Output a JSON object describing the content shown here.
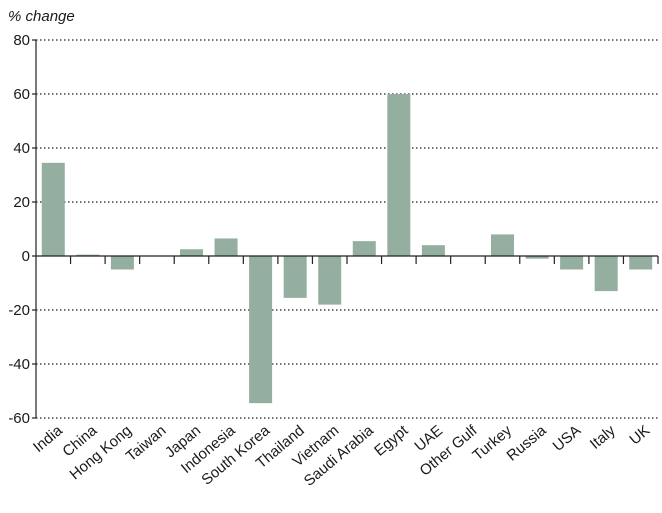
{
  "chart_data": {
    "type": "bar",
    "ylabel": "% change",
    "ylim": [
      -60,
      80
    ],
    "yticks": [
      80,
      60,
      40,
      20,
      0,
      -20,
      -40,
      -60
    ],
    "grid": true,
    "bar_color": "#94ae9f",
    "categories": [
      "India",
      "China",
      "Hong Kong",
      "Taiwan",
      "Japan",
      "Indonesia",
      "South Korea",
      "Thailand",
      "Vietnam",
      "Saudi Arabia",
      "Egypt",
      "UAE",
      "Other Gulf",
      "Turkey",
      "Russia",
      "USA",
      "Italy",
      "UK"
    ],
    "values": [
      34.5,
      0.5,
      -5,
      0,
      2.5,
      6.5,
      -54.5,
      -15.5,
      -18,
      5.5,
      60,
      4,
      0,
      8,
      -1,
      -5,
      -13,
      -5
    ]
  }
}
